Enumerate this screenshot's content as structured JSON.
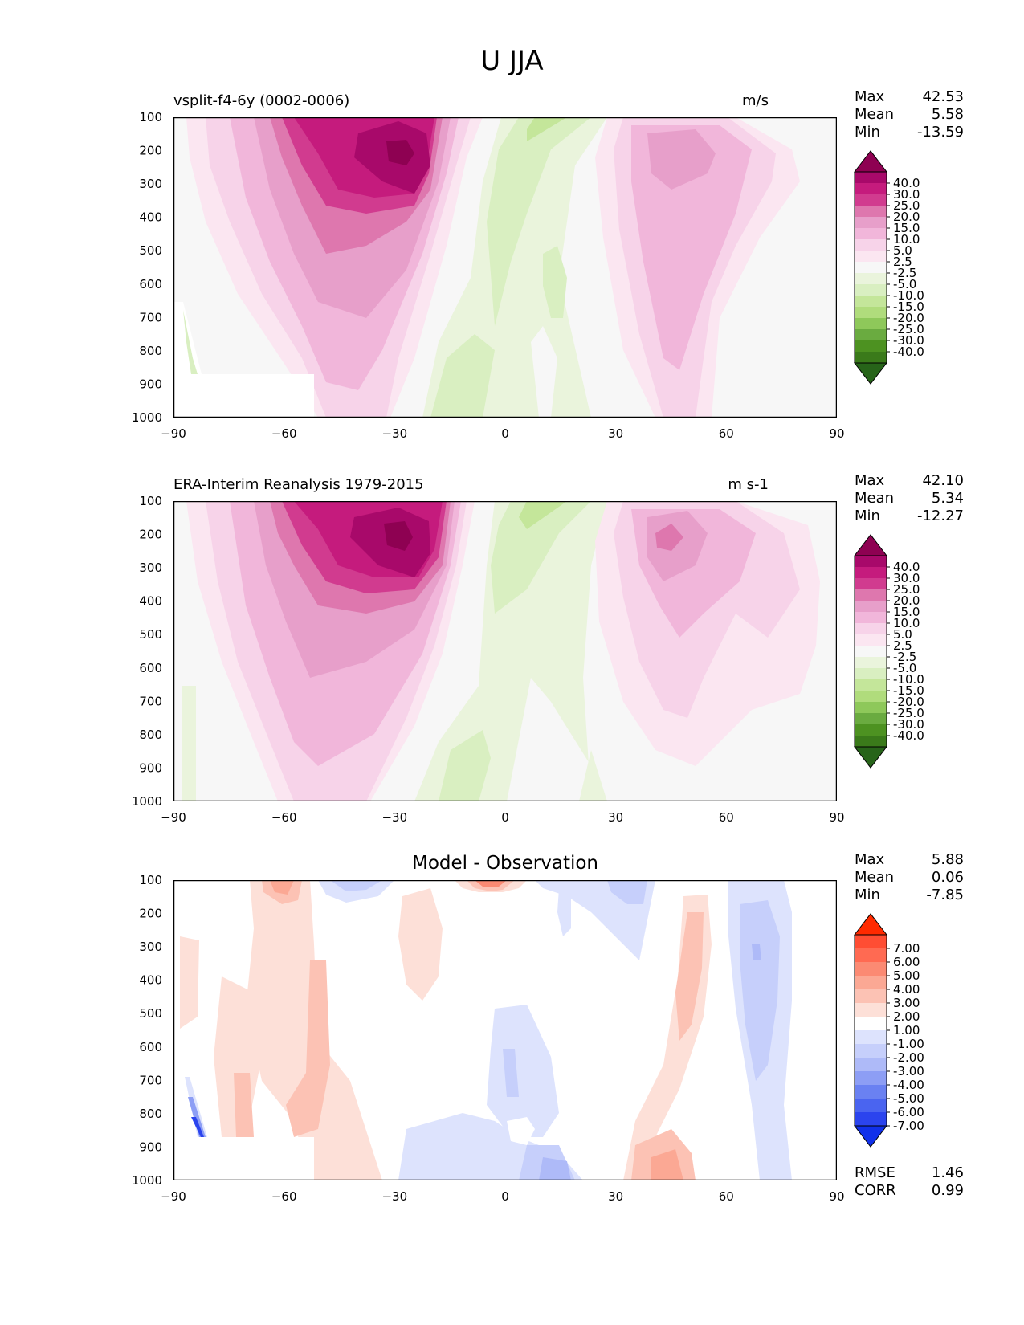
{
  "figure_title": "U JJA",
  "panels": [
    {
      "id": "model",
      "title_left": "vsplit-f4-6y (0002-0006)",
      "title_right": "m/s",
      "stats": [
        {
          "label": "Max",
          "value": "42.53"
        },
        {
          "label": "Mean",
          "value": "5.58"
        },
        {
          "label": "Min",
          "value": "-13.59"
        }
      ]
    },
    {
      "id": "obs",
      "title_left": "ERA-Interim Reanalysis 1979-2015",
      "title_right": "m s-1",
      "stats": [
        {
          "label": "Max",
          "value": "42.10"
        },
        {
          "label": "Mean",
          "value": "5.34"
        },
        {
          "label": "Min",
          "value": "-12.27"
        }
      ]
    },
    {
      "id": "diff",
      "title_center": "Model - Observation",
      "stats": [
        {
          "label": "Max",
          "value": "5.88"
        },
        {
          "label": "Mean",
          "value": "0.06"
        },
        {
          "label": "Min",
          "value": "-7.85"
        }
      ],
      "bottom_stats": [
        {
          "label": "RMSE",
          "value": "1.46"
        },
        {
          "label": "CORR",
          "value": "0.99"
        }
      ]
    }
  ],
  "chart_data": [
    {
      "type": "heatmap",
      "panel": "model",
      "x_ticks": [
        "−90",
        "−60",
        "−30",
        "0",
        "30",
        "60",
        "90"
      ],
      "y_ticks": [
        "100",
        "200",
        "300",
        "400",
        "500",
        "600",
        "700",
        "800",
        "900",
        "1000"
      ],
      "xlim": [
        -90,
        90
      ],
      "ylim": [
        1000,
        100
      ],
      "colorbar": {
        "labels": [
          "40.0",
          "30.0",
          "25.0",
          "20.0",
          "15.0",
          "10.0",
          "5.0",
          "2.5",
          "-2.5",
          "-5.0",
          "-10.0",
          "-15.0",
          "-20.0",
          "-25.0",
          "-30.0",
          "-40.0"
        ],
        "colors": [
          "#8e0152",
          "#a8096a",
          "#c51b7d",
          "#d13b8f",
          "#de77ae",
          "#e79fca",
          "#f1b6da",
          "#f7d3e9",
          "#fbe6f1",
          "#f7f7f7",
          "#eaf4dc",
          "#d9efc1",
          "#c4e69a",
          "#b0dc7c",
          "#8ec85a",
          "#6aab40",
          "#4d9221",
          "#3a7a1a",
          "#276419"
        ]
      },
      "features": [
        {
          "label": "westerly jet core",
          "lat": -28,
          "p": 200,
          "peak": 42.53
        },
        {
          "label": "northern jet",
          "lat": 42,
          "p": 220,
          "peak": 20
        },
        {
          "label": "tropical easterlies",
          "lat": 5,
          "p": 150,
          "peak": -13.59
        }
      ]
    },
    {
      "type": "heatmap",
      "panel": "obs",
      "x_ticks": [
        "−90",
        "−60",
        "−30",
        "0",
        "30",
        "60",
        "90"
      ],
      "y_ticks": [
        "100",
        "200",
        "300",
        "400",
        "500",
        "600",
        "700",
        "800",
        "900",
        "1000"
      ],
      "xlim": [
        -90,
        90
      ],
      "ylim": [
        1000,
        100
      ],
      "colorbar": {
        "labels": [
          "40.0",
          "30.0",
          "25.0",
          "20.0",
          "15.0",
          "10.0",
          "5.0",
          "2.5",
          "-2.5",
          "-5.0",
          "-10.0",
          "-15.0",
          "-20.0",
          "-25.0",
          "-30.0",
          "-40.0"
        ],
        "colors": [
          "#8e0152",
          "#a8096a",
          "#c51b7d",
          "#d13b8f",
          "#de77ae",
          "#e79fca",
          "#f1b6da",
          "#f7d3e9",
          "#fbe6f1",
          "#f7f7f7",
          "#eaf4dc",
          "#d9efc1",
          "#c4e69a",
          "#b0dc7c",
          "#8ec85a",
          "#6aab40",
          "#4d9221",
          "#3a7a1a",
          "#276419"
        ]
      },
      "features": [
        {
          "label": "westerly jet core",
          "lat": -29,
          "p": 200,
          "peak": 42.1
        },
        {
          "label": "northern jet",
          "lat": 42,
          "p": 200,
          "peak": 22
        },
        {
          "label": "tropical easterlies",
          "lat": 5,
          "p": 150,
          "peak": -12.27
        }
      ]
    },
    {
      "type": "heatmap",
      "panel": "diff",
      "x_ticks": [
        "−90",
        "−60",
        "−30",
        "0",
        "30",
        "60",
        "90"
      ],
      "y_ticks": [
        "100",
        "200",
        "300",
        "400",
        "500",
        "600",
        "700",
        "800",
        "900",
        "1000"
      ],
      "xlim": [
        -90,
        90
      ],
      "ylim": [
        1000,
        100
      ],
      "colorbar": {
        "labels": [
          "7.00",
          "6.00",
          "5.00",
          "4.00",
          "3.00",
          "2.00",
          "1.00",
          "-1.00",
          "-2.00",
          "-3.00",
          "-4.00",
          "-5.00",
          "-6.00",
          "-7.00"
        ],
        "colors": [
          "#ff2a00",
          "#ff4d33",
          "#ff6a52",
          "#fb8a73",
          "#fba894",
          "#fcc2b4",
          "#fde0d8",
          "#ffffff",
          "#dde3fd",
          "#c6cffb",
          "#aebaf8",
          "#8d9ef5",
          "#6a81f2",
          "#4a64f0",
          "#2b44ee",
          "#1030ea"
        ]
      },
      "features": [
        {
          "label": "positive anomaly",
          "lat": 0,
          "p": 100,
          "peak": 5.88
        },
        {
          "label": "negative anomaly",
          "lat": 77,
          "p": 300,
          "peak": -4.5
        },
        {
          "label": "positive anomaly",
          "lat": 50,
          "p": 1000,
          "peak": 4
        },
        {
          "label": "negative anomaly",
          "lat": -86,
          "p": 850,
          "peak": -7.85
        }
      ]
    }
  ]
}
